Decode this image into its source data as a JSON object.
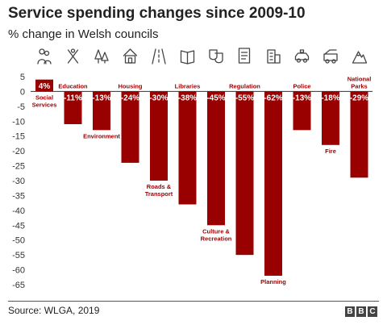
{
  "title": "Service spending changes since 2009-10",
  "subtitle": "% change in Welsh councils",
  "source": "Source: WLGA, 2019",
  "logo_letters": [
    "B",
    "B",
    "C"
  ],
  "colors": {
    "bar": "#990000",
    "positive_label": "#ffffff",
    "category_label": "#990000"
  },
  "chart_data": {
    "type": "bar",
    "categories": [
      "Social Services",
      "Education",
      "Environment",
      "Housing",
      "Roads & Transport",
      "Libraries",
      "Culture & Recreation",
      "Regulation",
      "Planning",
      "Police",
      "Fire",
      "National Parks"
    ],
    "values": [
      4,
      -11,
      -13,
      -24,
      -30,
      -38,
      -45,
      -55,
      -62,
      -13,
      -18,
      -29
    ],
    "data_labels": [
      "4%",
      "-11%",
      "-13%",
      "-24%",
      "-30%",
      "-38%",
      "-45%",
      "-55%",
      "-62%",
      "-13%",
      "-18%",
      "-29%"
    ],
    "category_label_position": [
      "below",
      "above",
      "below",
      "above",
      "below",
      "above",
      "below",
      "above",
      "below",
      "above",
      "below",
      "above"
    ],
    "icons": [
      "people-icon",
      "tools-icon",
      "trees-icon",
      "house-icon",
      "road-icon",
      "book-icon",
      "theatre-masks-icon",
      "document-icon",
      "building-icon",
      "police-car-icon",
      "fire-engine-icon",
      "mountain-icon"
    ],
    "y_ticks": [
      5,
      0,
      -5,
      -10,
      -15,
      -20,
      -25,
      -30,
      -35,
      -40,
      -45,
      -50,
      -55,
      -60,
      -65
    ],
    "ylim": [
      -65,
      5
    ],
    "grid": false
  }
}
